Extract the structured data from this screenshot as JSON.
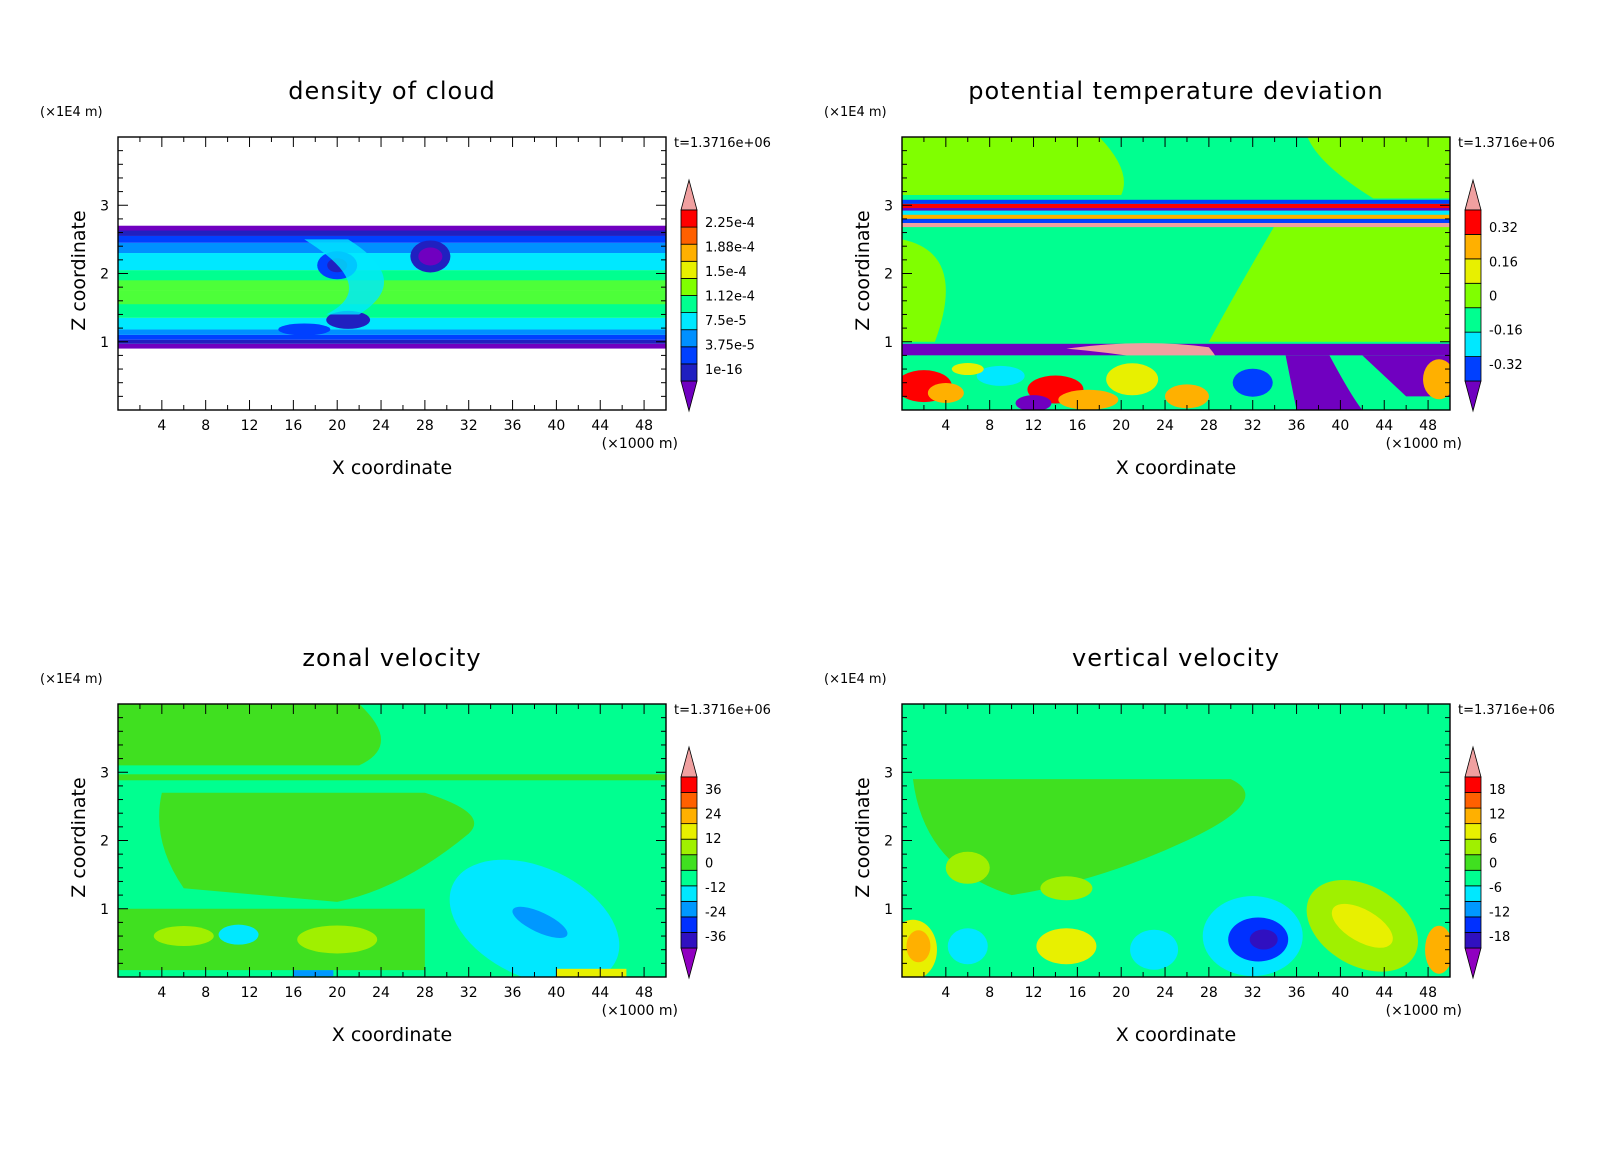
{
  "chart_data": [
    {
      "type": "heatmap",
      "title": "density of cloud",
      "xlabel": "X coordinate",
      "ylabel": "Z coordinate",
      "x_scale_label": "(×1000 m)",
      "y_scale_label": "(×1E4 m)",
      "time_label": "t=1.3716e+06",
      "xlim": [
        0,
        50
      ],
      "ylim": [
        0,
        4
      ],
      "xticks": [
        4,
        8,
        12,
        16,
        20,
        24,
        28,
        32,
        36,
        40,
        44,
        48
      ],
      "yticks": [
        1,
        2,
        3
      ],
      "colorbar": {
        "labels": [
          "1e-16",
          "3.75e-5",
          "7.5e-5",
          "1.12e-4",
          "1.5e-4",
          "1.88e-4",
          "2.25e-4"
        ],
        "colors": [
          "#7000c0",
          "#2020c0",
          "#0040ff",
          "#0090ff",
          "#00e8ff",
          "#00ff90",
          "#80ff00",
          "#e8f000",
          "#ffb000",
          "#ff6000",
          "#ff0000",
          "#f0a0a0"
        ]
      },
      "features": [
        {
          "kind": "cloud-deck-bottom",
          "z": [
            0.9,
            1.15
          ],
          "value": "7.5e-5"
        },
        {
          "kind": "cloud-deck-middle",
          "z": [
            1.15,
            2.45
          ],
          "value": "1.5e-4"
        },
        {
          "kind": "cloud-deck-top",
          "z": [
            2.45,
            2.7
          ],
          "value": "7.5e-5"
        },
        {
          "kind": "eddy",
          "x": 29,
          "z": 2.25,
          "value": "1e-16"
        },
        {
          "kind": "eddy",
          "x": 20,
          "z": 2.1,
          "value": "3.75e-5"
        },
        {
          "kind": "eddy",
          "x": 21,
          "z": 1.3,
          "value": "3.75e-5"
        }
      ]
    },
    {
      "type": "heatmap",
      "title": "potential temperature deviation",
      "xlabel": "X coordinate",
      "ylabel": "Z coordinate",
      "x_scale_label": "(×1000 m)",
      "y_scale_label": "(×1E4 m)",
      "time_label": "t=1.3716e+06",
      "xlim": [
        0,
        50
      ],
      "ylim": [
        0,
        4
      ],
      "xticks": [
        4,
        8,
        12,
        16,
        20,
        24,
        28,
        32,
        36,
        40,
        44,
        48
      ],
      "yticks": [
        1,
        2,
        3
      ],
      "colorbar": {
        "labels": [
          "-0.32",
          "-0.16",
          "0",
          "0.16",
          "0.32"
        ],
        "colors": [
          "#7000c0",
          "#0040ff",
          "#00e8ff",
          "#00ff90",
          "#80ff00",
          "#e8f000",
          "#ffb000",
          "#ff0000",
          "#f0a0a0"
        ]
      },
      "features": [
        {
          "kind": "background",
          "value": 0
        },
        {
          "kind": "warm-layer",
          "z": [
            2.6,
            2.8
          ],
          "value": 0.32
        },
        {
          "kind": "cold-layer",
          "z": [
            0.8,
            0.95
          ],
          "value": -0.32
        },
        {
          "kind": "mixed-boundary-layer",
          "z": [
            0,
            0.8
          ]
        }
      ]
    },
    {
      "type": "heatmap",
      "title": "zonal velocity",
      "xlabel": "X coordinate",
      "ylabel": "Z coordinate",
      "x_scale_label": "(×1000 m)",
      "y_scale_label": "(×1E4 m)",
      "time_label": "t=1.3716e+06",
      "xlim": [
        0,
        50
      ],
      "ylim": [
        0,
        4
      ],
      "xticks": [
        4,
        8,
        12,
        16,
        20,
        24,
        28,
        32,
        36,
        40,
        44,
        48
      ],
      "yticks": [
        1,
        2,
        3
      ],
      "colorbar": {
        "labels": [
          "-36",
          "-24",
          "-12",
          "0",
          "12",
          "24",
          "36"
        ],
        "colors": [
          "#9000c0",
          "#3010c0",
          "#0030ff",
          "#0098ff",
          "#00e8ff",
          "#00ff90",
          "#40e020",
          "#a0f000",
          "#e8f000",
          "#ffb000",
          "#ff6000",
          "#ff0000",
          "#f0a0a0"
        ]
      },
      "features": [
        {
          "kind": "background",
          "value": 0
        },
        {
          "kind": "jet",
          "x": 38,
          "z": 0.85,
          "value": -24
        }
      ]
    },
    {
      "type": "heatmap",
      "title": "vertical velocity",
      "xlabel": "X coordinate",
      "ylabel": "Z coordinate",
      "x_scale_label": "(×1000 m)",
      "y_scale_label": "(×1E4 m)",
      "time_label": "t=1.3716e+06",
      "xlim": [
        0,
        50
      ],
      "ylim": [
        0,
        4
      ],
      "xticks": [
        4,
        8,
        12,
        16,
        20,
        24,
        28,
        32,
        36,
        40,
        44,
        48
      ],
      "yticks": [
        1,
        2,
        3
      ],
      "colorbar": {
        "labels": [
          "-18",
          "-12",
          "-6",
          "0",
          "6",
          "12",
          "18"
        ],
        "colors": [
          "#9000c0",
          "#3010c0",
          "#0030ff",
          "#0098ff",
          "#00e8ff",
          "#00ff90",
          "#40e020",
          "#a0f000",
          "#e8f000",
          "#ffb000",
          "#ff6000",
          "#ff0000",
          "#f0a0a0"
        ]
      },
      "features": [
        {
          "kind": "background",
          "value": 0
        },
        {
          "kind": "updraft",
          "x": 1,
          "z": 0.4,
          "value": 12
        },
        {
          "kind": "downdraft",
          "x": 32,
          "z": 0.6,
          "value": -12
        },
        {
          "kind": "updraft",
          "x": 42,
          "z": 0.7,
          "value": 6
        }
      ]
    }
  ]
}
